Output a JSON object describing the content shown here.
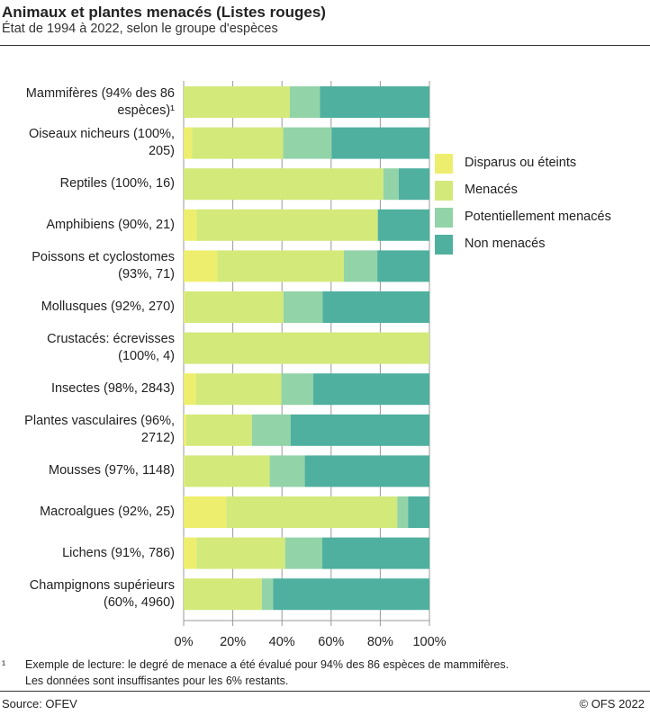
{
  "chart_data": {
    "type": "bar",
    "orientation": "horizontal-stacked",
    "title": "Animaux et plantes menacés (Listes rouges)",
    "subtitle": "État de 1994 à 2022, selon le groupe d'espèces",
    "categories": [
      [
        "Mammifères (94% des 86",
        "espèces)¹"
      ],
      [
        "Oiseaux nicheurs (100%,",
        "205)"
      ],
      [
        "Reptiles (100%, 16)"
      ],
      [
        "Amphibiens (90%, 21)"
      ],
      [
        "Poissons et cyclostomes",
        "(93%, 71)"
      ],
      [
        "Mollusques (92%, 270)"
      ],
      [
        "Crustacés: écrevisses",
        "(100%, 4)"
      ],
      [
        "Insectes (98%, 2843)"
      ],
      [
        "Plantes vasculaires (96%,",
        "2712)"
      ],
      [
        "Mousses (97%, 1148)"
      ],
      [
        "Macroalgues (92%, 25)"
      ],
      [
        "Lichens (91%, 786)"
      ],
      [
        "Champignons supérieurs",
        "(60%, 4960)"
      ]
    ],
    "series": [
      {
        "name": "Disparus ou éteints",
        "color": "#eeee6e",
        "values": [
          0,
          3.4,
          0,
          5.3,
          13.7,
          0.4,
          0,
          5,
          1,
          0.3,
          17.3,
          5.2,
          0
        ]
      },
      {
        "name": "Menacés",
        "color": "#d3e97a",
        "values": [
          43.2,
          37.1,
          81.25,
          73.7,
          51.5,
          40.2,
          100,
          34.8,
          26.8,
          34.7,
          69.6,
          36.1,
          31.8
        ]
      },
      {
        "name": "Potentiellement menacés",
        "color": "#92d3a8",
        "values": [
          12.3,
          19.7,
          6.25,
          0,
          13.6,
          16,
          0,
          12.9,
          15.7,
          14.3,
          4.4,
          15.1,
          4.6
        ]
      },
      {
        "name": "Non menacés",
        "color": "#4fb09f",
        "values": [
          44.5,
          39.8,
          12.5,
          21,
          21.2,
          43.4,
          0,
          47.3,
          56.5,
          50.7,
          8.7,
          43.6,
          63.6
        ]
      }
    ],
    "xlim": [
      0,
      100
    ],
    "xticks": [
      "0%",
      "20%",
      "40%",
      "60%",
      "80%",
      "100%"
    ],
    "grid": true,
    "legend_position": "right"
  },
  "footnote": {
    "mark": "¹",
    "lines": [
      "Exemple de lecture: le degré de menace a été évalué pour 94% des 86 espèces de mammifères.",
      "Les données sont insuffisantes pour les 6% restants."
    ]
  },
  "source": "Source: OFEV",
  "copyright": "© OFS 2022"
}
